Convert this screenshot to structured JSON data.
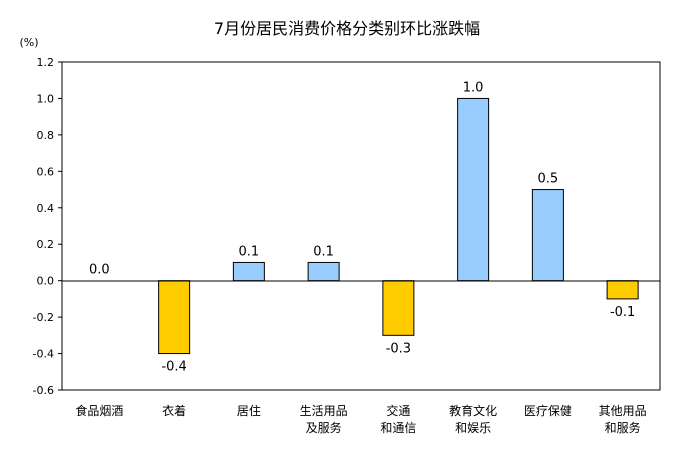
{
  "chart_data": {
    "type": "bar",
    "title": "7月份居民消费价格分类别环比涨跌幅",
    "y_unit_label": "(%)",
    "ylim": [
      -0.6,
      1.2
    ],
    "y_ticks": [
      "1.2",
      "1.0",
      "0.8",
      "0.6",
      "0.4",
      "0.2",
      "0.0",
      "-0.2",
      "-0.4",
      "-0.6"
    ],
    "categories": [
      [
        "食品烟酒"
      ],
      [
        "衣着"
      ],
      [
        "居住"
      ],
      [
        "生活用品",
        "及服务"
      ],
      [
        "交通",
        "和通信"
      ],
      [
        "教育文化",
        "和娱乐"
      ],
      [
        "医疗保健"
      ],
      [
        "其他用品",
        "和服务"
      ]
    ],
    "values": [
      0.0,
      -0.4,
      0.1,
      0.1,
      -0.3,
      1.0,
      0.5,
      -0.1
    ],
    "value_labels": [
      "0.0",
      "-0.4",
      "0.1",
      "0.1",
      "-0.3",
      "1.0",
      "0.5",
      "-0.1"
    ],
    "colors": {
      "positive": "#99ccff",
      "negative": "#ffcc00",
      "outline": "#000000"
    },
    "grid": false,
    "legend": "none"
  }
}
